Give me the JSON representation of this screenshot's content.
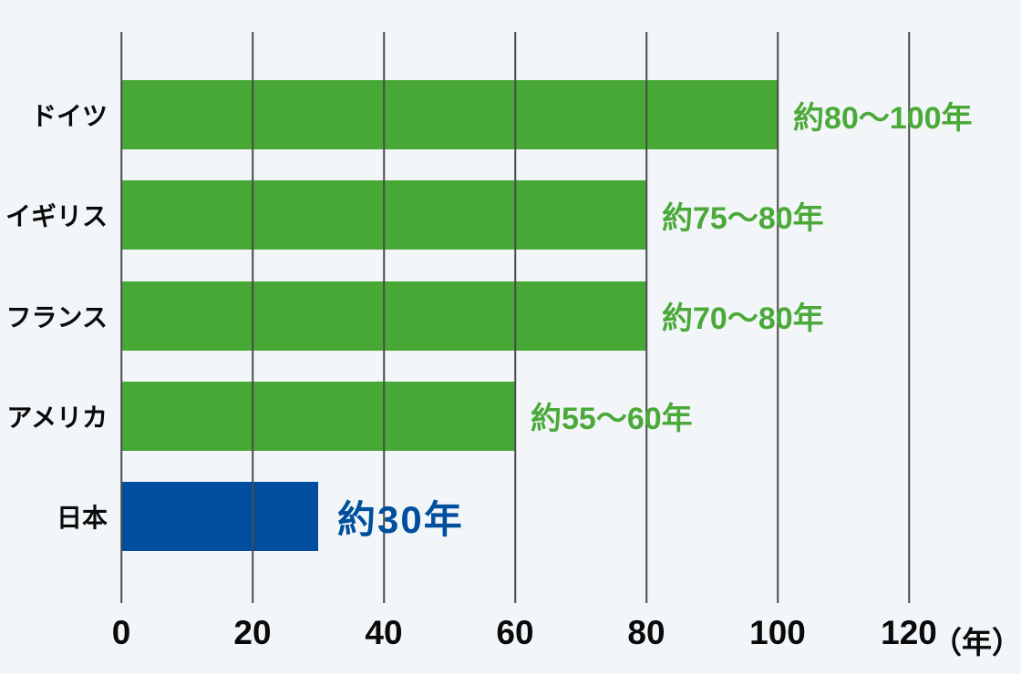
{
  "chart_data": {
    "type": "bar",
    "orientation": "horizontal",
    "title": "",
    "xlabel": "",
    "ylabel": "",
    "x_unit": "（年）",
    "x_ticks": [
      0,
      20,
      40,
      60,
      80,
      100,
      120
    ],
    "xlim": [
      0,
      130
    ],
    "grid": "vertical",
    "legend": "none",
    "categories": [
      "ドイツ",
      "イギリス",
      "フランス",
      "アメリカ",
      "日本"
    ],
    "values": [
      100,
      80,
      80,
      60,
      30
    ],
    "rows": [
      {
        "label": "ドイツ",
        "value": 100,
        "value_label": "約80～100年",
        "highlight": false
      },
      {
        "label": "イギリス",
        "value": 80,
        "value_label": "約75～80年",
        "highlight": false
      },
      {
        "label": "フランス",
        "value": 80,
        "value_label": "約70～80年",
        "highlight": false
      },
      {
        "label": "アメリカ",
        "value": 60,
        "value_label": "約55～60年",
        "highlight": false
      },
      {
        "label": "日本",
        "value": 30,
        "value_label": "約30年",
        "highlight": true
      }
    ],
    "colors": {
      "bar": "#48a836",
      "highlight_bar": "#004f9e",
      "value_text": "#4aa938",
      "highlight_value_text": "#004f9e",
      "axis_text": "#0a0a0a",
      "gridline": "#4a4a4a",
      "background": "#f2f6f9"
    }
  }
}
